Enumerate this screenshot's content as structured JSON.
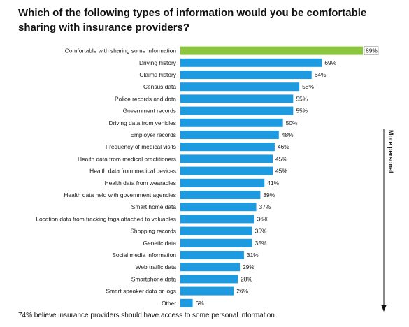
{
  "chart_data": {
    "type": "bar",
    "orientation": "horizontal",
    "title": "Which of the following types of information would you be comfortable sharing with insurance providers?",
    "categories": [
      "Comfortable with sharing some information",
      "Driving history",
      "Claims history",
      "Census data",
      "Police records and data",
      "Government records",
      "Driving data from vehicles",
      "Employer records",
      "Frequency of medical visits",
      "Health data from medical practitioners",
      "Health data from medical devices",
      "Health data from wearables",
      "Health data held with government agencies",
      "Smart home data",
      "Location data from tracking tags attached to valuables",
      "Shopping records",
      "Genetic data",
      "Social media information",
      "Web traffic data",
      "Smartphone data",
      "Smart speaker data or logs",
      "Other"
    ],
    "values": [
      89,
      69,
      64,
      58,
      55,
      55,
      50,
      48,
      46,
      45,
      45,
      41,
      39,
      37,
      36,
      35,
      35,
      31,
      29,
      28,
      26,
      6
    ],
    "value_suffix": "%",
    "xlim": [
      0,
      90
    ],
    "highlight_index": 0,
    "colors": {
      "highlight": "#8cc63f",
      "bar": "#1e9be0",
      "bar_edge": "#1580c2",
      "arrow": "#111111"
    },
    "arrow_label": "More personal",
    "grid": false,
    "legend": "none"
  },
  "footnote": "74% believe insurance providers should have access to some personal information."
}
